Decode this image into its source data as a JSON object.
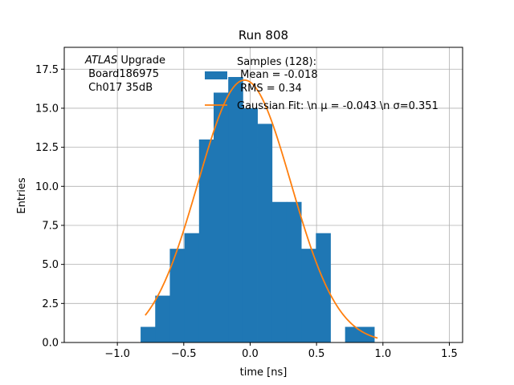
{
  "chart_data": {
    "type": "bar",
    "title": "Run 808",
    "xlabel": "time [ns]",
    "ylabel": "Entries",
    "xlim": [
      -1.4,
      1.6
    ],
    "ylim": [
      0,
      18.9
    ],
    "grid": true,
    "x_ticks": [
      -1.0,
      -0.5,
      0.0,
      0.5,
      1.0,
      1.5
    ],
    "x_tick_labels": [
      "−1.0",
      "−0.5",
      "0.0",
      "0.5",
      "1.0",
      "1.5"
    ],
    "y_ticks": [
      0.0,
      2.5,
      5.0,
      7.5,
      10.0,
      12.5,
      15.0,
      17.5
    ],
    "y_tick_labels": [
      "0.0",
      "2.5",
      "5.0",
      "7.5",
      "10.0",
      "12.5",
      "15.0",
      "17.5"
    ],
    "bin_edges": [
      -0.825,
      -0.715,
      -0.605,
      -0.495,
      -0.385,
      -0.275,
      -0.165,
      -0.055,
      0.055,
      0.165,
      0.275,
      0.385,
      0.495,
      0.605,
      0.715,
      0.825,
      0.935,
      1.045
    ],
    "bin_counts": [
      1,
      3,
      6,
      7,
      13,
      16,
      17,
      15,
      14,
      9,
      9,
      6,
      7,
      0,
      1,
      1,
      0
    ],
    "histogram_color": "#1f77b4",
    "fit": {
      "color": "#ff7f0e",
      "mu": -0.043,
      "sigma": 0.351,
      "amplitude": 16.8,
      "x_range": [
        -0.79,
        0.96
      ]
    },
    "annotation": {
      "line1_italic": "ATLAS",
      "line1_rest": " Upgrade",
      "line2": " Board186975",
      "line3": " Ch017 35dB"
    },
    "legend": {
      "position": "upper center",
      "hist_label_lines": [
        "Samples (128):",
        " Mean = -0.018",
        " RMS = 0.34"
      ],
      "fit_label": "Gaussian Fit: \\n μ = -0.043 \\n σ=0.351"
    }
  }
}
